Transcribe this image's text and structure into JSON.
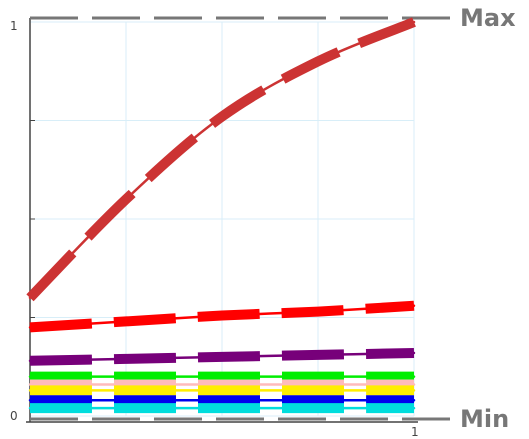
{
  "chart_data": {
    "type": "line",
    "title": "",
    "xlabel": "",
    "ylabel": "",
    "x": [
      0,
      0.25,
      0.5,
      0.75,
      1
    ],
    "xlim": [
      0,
      1
    ],
    "ylim": [
      0,
      1
    ],
    "x_ticks": [
      {
        "value": 1,
        "label": "1"
      }
    ],
    "y_ticks": [
      {
        "value": 0,
        "label": "0"
      },
      {
        "value": 1,
        "label": "1"
      }
    ],
    "grid": true,
    "reference_lines": [
      {
        "label": "Max",
        "value": 1,
        "color": "#777777"
      },
      {
        "label": "Min",
        "value": 0,
        "color": "#777777"
      }
    ],
    "series": [
      {
        "color": "#cc3333",
        "values": [
          0.3,
          0.55,
          0.76,
          0.9,
          1.0
        ]
      },
      {
        "color": "#ff0000",
        "values": [
          0.225,
          0.24,
          0.255,
          0.265,
          0.28
        ]
      },
      {
        "color": "#77007a",
        "values": [
          0.14,
          0.145,
          0.15,
          0.155,
          0.16
        ]
      },
      {
        "color": "#00ee00",
        "values": [
          0.1,
          0.1,
          0.1,
          0.1,
          0.1
        ]
      },
      {
        "color": "#ffbbbb",
        "values": [
          0.08,
          0.08,
          0.08,
          0.08,
          0.08
        ]
      },
      {
        "color": "#ffee00",
        "values": [
          0.065,
          0.065,
          0.065,
          0.065,
          0.065
        ]
      },
      {
        "color": "#0000ee",
        "values": [
          0.04,
          0.04,
          0.04,
          0.04,
          0.04
        ]
      },
      {
        "color": "#00dddd",
        "values": [
          0.02,
          0.02,
          0.02,
          0.02,
          0.02
        ]
      }
    ]
  }
}
